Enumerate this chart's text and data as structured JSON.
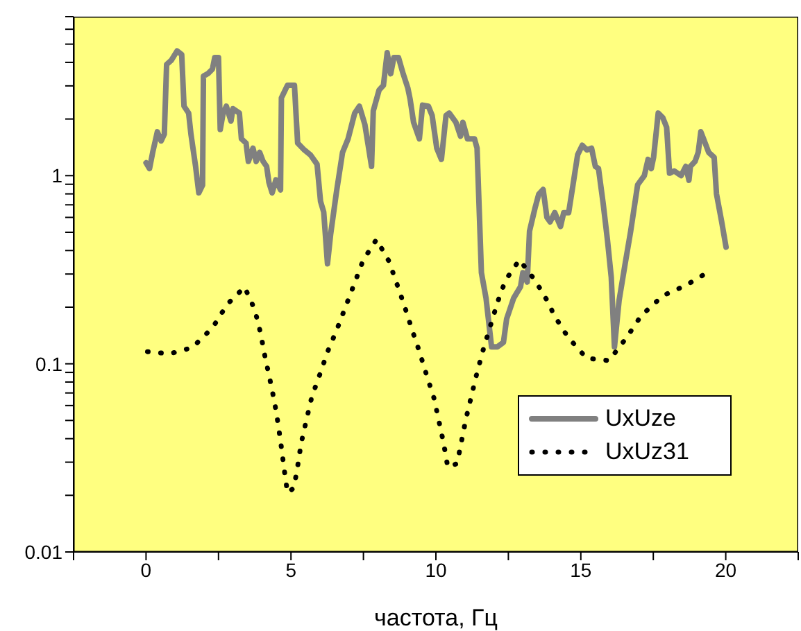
{
  "chart_data": {
    "type": "line",
    "xlabel": "частота, Гц",
    "log": "y",
    "xlim": [
      -2.5,
      22.5
    ],
    "ylim": [
      0.01,
      7
    ],
    "xticks": [
      {
        "value": -2.5,
        "label": null
      },
      0,
      {
        "value": 2.5,
        "label": null
      },
      5,
      {
        "value": 7.5,
        "label": null
      },
      10,
      {
        "value": 12.5,
        "label": null
      },
      15,
      {
        "value": 17.5,
        "label": null
      },
      20,
      {
        "value": 22.5,
        "label": null
      }
    ],
    "yticks": [
      0.01,
      {
        "value": 0.02,
        "label": null
      },
      {
        "value": 0.03,
        "label": null
      },
      {
        "value": 0.04,
        "label": null
      },
      {
        "value": 0.05,
        "label": null
      },
      {
        "value": 0.06,
        "label": null
      },
      {
        "value": 0.07,
        "label": null
      },
      {
        "value": 0.08,
        "label": null
      },
      {
        "value": 0.09,
        "label": null
      },
      0.1,
      {
        "value": 0.2,
        "label": null
      },
      {
        "value": 0.3,
        "label": null
      },
      {
        "value": 0.4,
        "label": null
      },
      {
        "value": 0.5,
        "label": null
      },
      {
        "value": 0.6,
        "label": null
      },
      {
        "value": 0.7,
        "label": null
      },
      {
        "value": 0.8,
        "label": null
      },
      {
        "value": 0.9,
        "label": null
      },
      1,
      {
        "value": 2,
        "label": null
      },
      {
        "value": 3,
        "label": null
      },
      {
        "value": 4,
        "label": null
      },
      {
        "value": 5,
        "label": null
      },
      {
        "value": 6,
        "label": null
      },
      {
        "value": 7,
        "label": null
      }
    ],
    "grid": false,
    "legend": "bottom right",
    "marker": "none",
    "series": [
      {
        "name": "UxUze",
        "color": "#808080",
        "line_style": "solid",
        "x": [
          0,
          0.12,
          0.23,
          0.39,
          0.52,
          0.63,
          0.71,
          0.87,
          1.07,
          1.23,
          1.31,
          1.47,
          1.55,
          1.71,
          1.82,
          1.95,
          1.98,
          2.13,
          2.29,
          2.37,
          2.5,
          2.56,
          2.66,
          2.77,
          2.93,
          3.0,
          3.22,
          3.29,
          3.45,
          3.53,
          3.69,
          3.8,
          3.92,
          4.04,
          4.16,
          4.24,
          4.35,
          4.48,
          4.64,
          4.67,
          4.88,
          5.12,
          5.23,
          5.46,
          5.67,
          5.9,
          6.02,
          6.13,
          6.26,
          6.37,
          6.57,
          6.78,
          6.97,
          7.2,
          7.36,
          7.55,
          7.78,
          7.84,
          8.04,
          8.19,
          8.32,
          8.44,
          8.55,
          8.71,
          8.87,
          9.03,
          9.11,
          9.23,
          9.43,
          9.54,
          9.74,
          9.87,
          10.03,
          10.19,
          10.35,
          10.46,
          10.69,
          10.85,
          10.93,
          11.09,
          11.33,
          11.42,
          11.57,
          11.73,
          11.92,
          12.12,
          12.33,
          12.44,
          12.68,
          12.92,
          13.0,
          13.15,
          13.23,
          13.42,
          13.55,
          13.7,
          13.83,
          13.94,
          14.1,
          14.3,
          14.41,
          14.58,
          14.73,
          14.89,
          15.05,
          15.21,
          15.37,
          15.5,
          15.61,
          15.77,
          15.92,
          16.05,
          16.16,
          16.32,
          16.53,
          16.72,
          16.96,
          17.19,
          17.32,
          17.43,
          17.51,
          17.67,
          17.83,
          17.96,
          18.06,
          18.22,
          18.46,
          18.62,
          18.73,
          18.78,
          18.94,
          19.05,
          19.14,
          19.29,
          19.41,
          19.6,
          19.68,
          19.86,
          20.01
        ],
        "values": [
          1.17,
          1.09,
          1.33,
          1.71,
          1.53,
          1.66,
          3.9,
          4.1,
          4.6,
          4.4,
          2.34,
          2.15,
          1.66,
          1.12,
          0.81,
          0.89,
          3.38,
          3.48,
          3.68,
          4.24,
          4.24,
          1.76,
          2.15,
          2.34,
          1.95,
          2.27,
          2.15,
          1.57,
          1.49,
          1.19,
          1.4,
          1.19,
          1.33,
          1.19,
          1.12,
          0.92,
          0.81,
          0.95,
          0.84,
          2.59,
          3.02,
          3.02,
          1.49,
          1.37,
          1.29,
          1.15,
          0.73,
          0.64,
          0.34,
          0.49,
          0.82,
          1.33,
          1.57,
          2.15,
          2.34,
          1.87,
          1.12,
          2.21,
          2.85,
          3.02,
          4.5,
          3.48,
          4.24,
          4.24,
          3.48,
          2.93,
          2.55,
          1.92,
          1.57,
          2.37,
          2.34,
          2.09,
          1.4,
          1.22,
          2.09,
          2.15,
          1.92,
          1.62,
          1.92,
          1.57,
          1.57,
          1.4,
          0.305,
          0.223,
          0.123,
          0.123,
          0.13,
          0.173,
          0.223,
          0.257,
          0.305,
          0.272,
          0.507,
          0.673,
          0.798,
          0.844,
          0.6,
          0.568,
          0.636,
          0.537,
          0.636,
          0.636,
          0.894,
          1.29,
          1.45,
          1.37,
          1.4,
          1.12,
          1.09,
          0.712,
          0.453,
          0.288,
          0.123,
          0.217,
          0.341,
          0.507,
          0.894,
          1.0,
          1.22,
          1.09,
          1.25,
          2.15,
          2.03,
          1.81,
          1.03,
          1.06,
          1.0,
          1.12,
          0.946,
          1.12,
          1.19,
          1.33,
          1.71,
          1.49,
          1.33,
          1.25,
          0.8,
          0.568,
          0.417
        ]
      },
      {
        "name": "UxUz31",
        "color": "#000000",
        "line_style": "dotted",
        "x": [
          0.05,
          0.82,
          1.6,
          2.3,
          2.8,
          3.4,
          3.75,
          3.95,
          4.1,
          4.27,
          4.43,
          4.56,
          4.67,
          4.77,
          4.88,
          5.1,
          5.23,
          5.35,
          5.53,
          5.72,
          5.99,
          6.27,
          6.59,
          6.9,
          7.2,
          7.49,
          7.95,
          8.38,
          8.65,
          8.92,
          9.17,
          9.44,
          9.68,
          9.93,
          10.1,
          10.27,
          10.41,
          10.73,
          10.88,
          11.04,
          11.23,
          11.42,
          11.64,
          11.88,
          12.12,
          12.4,
          12.88,
          13.42,
          13.9,
          14.06,
          14.55,
          15.2,
          15.97,
          16.58,
          17.08,
          17.83,
          18.62,
          19.4
        ],
        "values": [
          0.116,
          0.113,
          0.122,
          0.156,
          0.207,
          0.256,
          0.194,
          0.146,
          0.11,
          0.083,
          0.063,
          0.0475,
          0.0359,
          0.0272,
          0.0206,
          0.0219,
          0.0285,
          0.0377,
          0.0501,
          0.0668,
          0.0873,
          0.1165,
          0.153,
          0.204,
          0.27,
          0.355,
          0.458,
          0.351,
          0.267,
          0.202,
          0.153,
          0.115,
          0.087,
          0.066,
          0.05,
          0.0376,
          0.0282,
          0.0295,
          0.0385,
          0.0513,
          0.0679,
          0.09,
          0.12,
          0.159,
          0.211,
          0.278,
          0.357,
          0.278,
          0.209,
          0.183,
          0.139,
          0.107,
          0.104,
          0.138,
          0.18,
          0.23,
          0.261,
          0.308
        ]
      }
    ]
  }
}
